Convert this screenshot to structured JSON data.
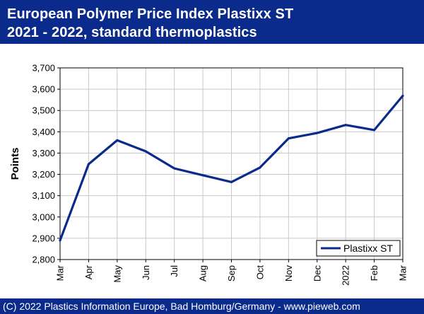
{
  "header": {
    "title_line1": "European Polymer Price Index Plastixx ST",
    "title_line2": "2021 - 2022, standard thermoplastics"
  },
  "footer": {
    "copyright": "(C) 2022 Plastics Information Europe, Bad Homburg/Germany - www.pieweb.com"
  },
  "colors": {
    "banner": "#0a2a8c",
    "series": "#0a2a8c"
  },
  "chart_data": {
    "type": "line",
    "title": "European Polymer Price Index Plastixx ST 2021 - 2022, standard thermoplastics",
    "xlabel": "",
    "ylabel": "Points",
    "categories": [
      "Mar",
      "Apr",
      "May",
      "Jun",
      "Jul",
      "Aug",
      "Sep",
      "Oct",
      "Nov",
      "Dec",
      "2022",
      "Feb",
      "Mar"
    ],
    "series": [
      {
        "name": "Plastixx ST",
        "values": [
          2890,
          3248,
          3360,
          3308,
          3228,
          3196,
          3164,
          3232,
          3369,
          3394,
          3432,
          3408,
          3569
        ]
      }
    ],
    "ylim": [
      2800,
      3700
    ],
    "yticks": [
      2800,
      2900,
      3000,
      3100,
      3200,
      3300,
      3400,
      3500,
      3600,
      3700
    ],
    "ytick_labels": [
      "2,800",
      "2,900",
      "3,000",
      "3,100",
      "3,200",
      "3,300",
      "3,400",
      "3,500",
      "3,600",
      "3,700"
    ],
    "grid": true,
    "legend_position": "bottom-right"
  }
}
